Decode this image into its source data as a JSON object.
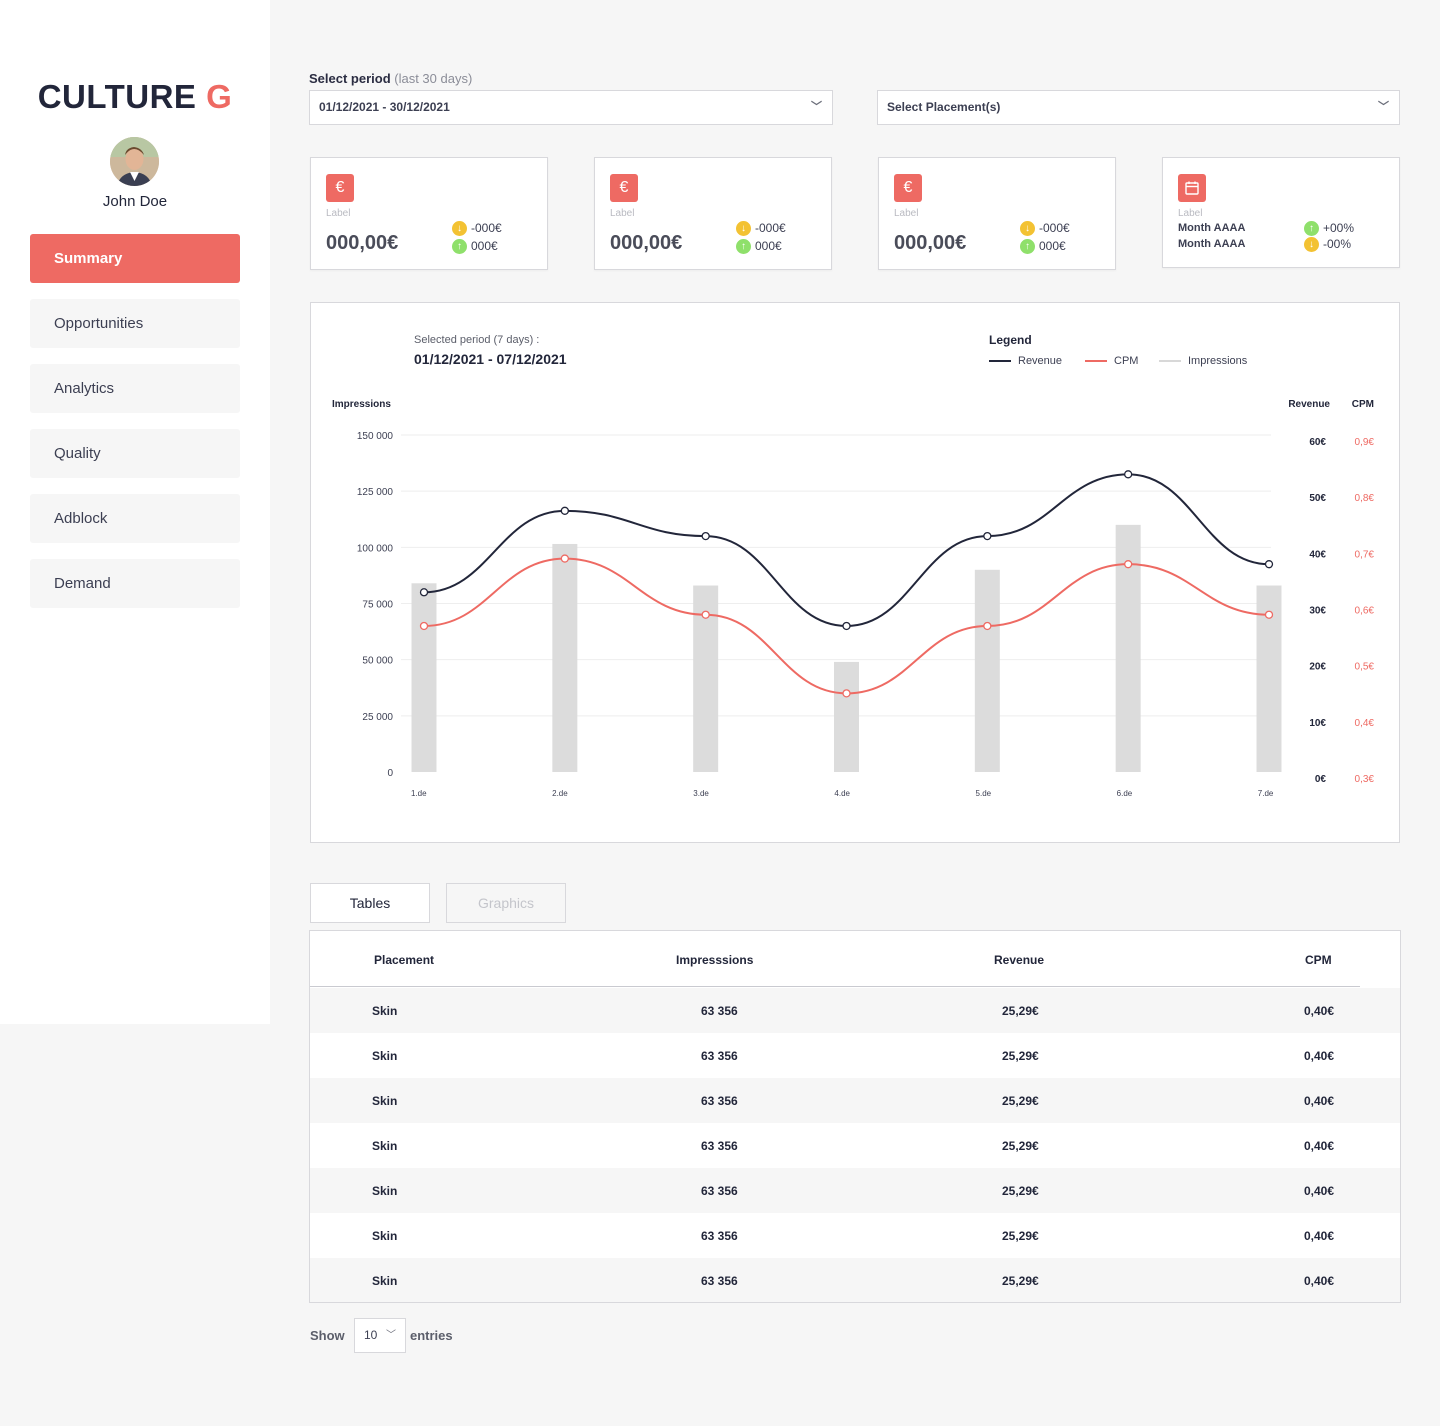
{
  "app": {
    "brand_main": "CULTURE",
    "brand_accent": "G",
    "accent_color": "#ee6a63"
  },
  "user": {
    "name": "John Doe",
    "avatar_icon": "user-avatar"
  },
  "sidebar": {
    "items": [
      {
        "label": "Summary",
        "active": true
      },
      {
        "label": "Opportunities",
        "active": false
      },
      {
        "label": "Analytics",
        "active": false
      },
      {
        "label": "Quality",
        "active": false
      },
      {
        "label": "Adblock",
        "active": false
      },
      {
        "label": "Demand",
        "active": false
      }
    ]
  },
  "filters": {
    "period_label": "Select period",
    "period_hint": "(last 30 days)",
    "period_value": "01/12/2021 - 30/12/2021",
    "placement_value": "Select Placement(s)"
  },
  "cards": [
    {
      "icon": "euro-icon",
      "glyph": "€",
      "label": "Label",
      "value": "000,00€",
      "delta1": "-000€",
      "delta1_dir": "down",
      "delta2": "000€",
      "delta2_dir": "up"
    },
    {
      "icon": "euro-icon",
      "glyph": "€",
      "label": "Label",
      "value": "000,00€",
      "delta1": "-000€",
      "delta1_dir": "down",
      "delta2": "000€",
      "delta2_dir": "up"
    },
    {
      "icon": "euro-icon",
      "glyph": "€",
      "label": "Label",
      "value": "000,00€",
      "delta1": "-000€",
      "delta1_dir": "down",
      "delta2": "000€",
      "delta2_dir": "up"
    },
    {
      "icon": "calendar-icon",
      "glyph": "▦",
      "label": "Label",
      "month1": "Month AAAA",
      "month2": "Month AAAA",
      "delta1": "+00%",
      "delta1_dir": "up",
      "delta2": "-00%",
      "delta2_dir": "down"
    }
  ],
  "chart_panel": {
    "selected_label": "Selected period (7 days) :",
    "selected_dates": "01/12/2021 - 07/12/2021",
    "legend_title": "Legend",
    "legend": [
      {
        "name": "Revenue",
        "color": "#22263a"
      },
      {
        "name": "CPM",
        "color": "#ee6a63"
      },
      {
        "name": "Impressions",
        "color": "#d8d8d8"
      }
    ]
  },
  "chart_data": {
    "type": "bar",
    "categories": [
      "1.de",
      "2.de",
      "3.de",
      "4.de",
      "5.de",
      "6.de",
      "7.de"
    ],
    "axes": {
      "left": {
        "label": "Impressions",
        "ticks": [
          "0",
          "25 000",
          "50 000",
          "75 000",
          "100 000",
          "125 000",
          "150 000"
        ],
        "ylim": [
          0,
          150000
        ]
      },
      "right_revenue": {
        "label": "Revenue",
        "ticks": [
          "0€",
          "10€",
          "20€",
          "30€",
          "40€",
          "50€",
          "60€"
        ],
        "ylim": [
          0,
          60
        ]
      },
      "right_cpm": {
        "label": "CPM",
        "ticks": [
          "0,3€",
          "0,4€",
          "0,5€",
          "0,6€",
          "0,7€",
          "0,8€",
          "0,9€"
        ],
        "ylim": [
          0.3,
          0.9
        ]
      }
    },
    "series": [
      {
        "name": "Impressions",
        "kind": "bar",
        "axis": "left",
        "values": [
          84000,
          101500,
          83000,
          49000,
          90000,
          110000,
          83000
        ]
      },
      {
        "name": "Revenue",
        "kind": "line",
        "axis": "right_revenue",
        "values": [
          32,
          46.5,
          42,
          26,
          42,
          53,
          37
        ]
      },
      {
        "name": "CPM",
        "kind": "line",
        "axis": "right_cpm",
        "values": [
          0.56,
          0.68,
          0.58,
          0.44,
          0.56,
          0.67,
          0.58
        ]
      }
    ],
    "grid": true
  },
  "tabs": [
    {
      "label": "Tables",
      "active": true
    },
    {
      "label": "Graphics",
      "active": false
    }
  ],
  "table": {
    "columns": [
      "Placement",
      "Impresssions",
      "Revenue",
      "CPM"
    ],
    "rows": [
      [
        "Skin",
        "63 356",
        "25,29€",
        "0,40€"
      ],
      [
        "Skin",
        "63 356",
        "25,29€",
        "0,40€"
      ],
      [
        "Skin",
        "63 356",
        "25,29€",
        "0,40€"
      ],
      [
        "Skin",
        "63 356",
        "25,29€",
        "0,40€"
      ],
      [
        "Skin",
        "63 356",
        "25,29€",
        "0,40€"
      ],
      [
        "Skin",
        "63 356",
        "25,29€",
        "0,40€"
      ],
      [
        "Skin",
        "63 356",
        "25,29€",
        "0,40€"
      ]
    ]
  },
  "pagination": {
    "show_label": "Show",
    "entries_value": "10",
    "entries_label": "entries"
  }
}
